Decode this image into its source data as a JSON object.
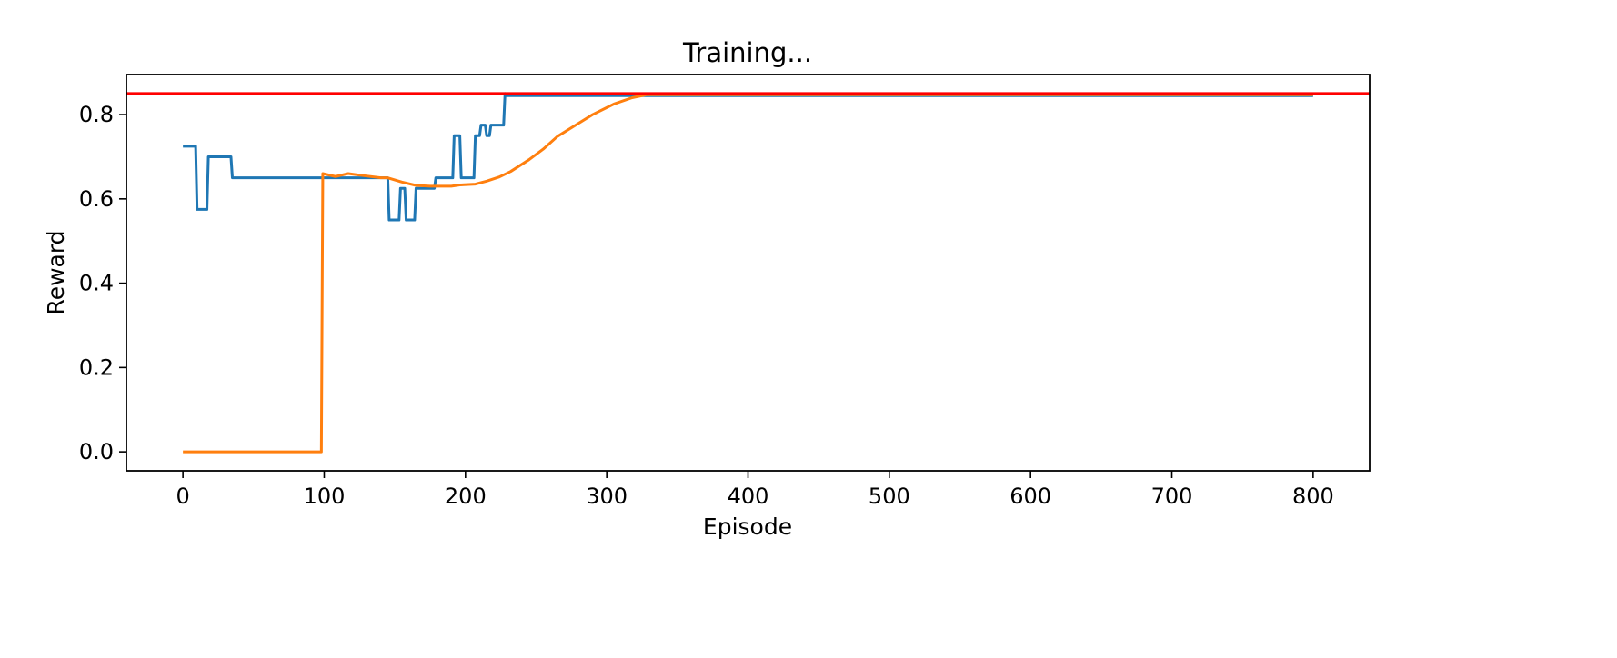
{
  "chart_data": {
    "type": "line",
    "title": "Training...",
    "xlabel": "Episode",
    "ylabel": "Reward",
    "xlim": [
      -40,
      840
    ],
    "ylim": [
      -0.045,
      0.895
    ],
    "x_ticks": [
      0,
      100,
      200,
      300,
      400,
      500,
      600,
      700,
      800
    ],
    "x_tick_labels": [
      "0",
      "100",
      "200",
      "300",
      "400",
      "500",
      "600",
      "700",
      "800"
    ],
    "y_ticks": [
      0.0,
      0.2,
      0.4,
      0.6,
      0.8
    ],
    "y_tick_labels": [
      "0.0",
      "0.2",
      "0.4",
      "0.6",
      "0.8"
    ],
    "grid": false,
    "legend": "none",
    "reference_line": {
      "y": 0.85,
      "color": "#ff0000"
    },
    "series": [
      {
        "color": "#1f77b4",
        "points": [
          [
            0,
            0.725
          ],
          [
            9,
            0.725
          ],
          [
            10,
            0.575
          ],
          [
            17,
            0.575
          ],
          [
            18,
            0.7
          ],
          [
            34,
            0.7
          ],
          [
            35,
            0.65
          ],
          [
            145,
            0.65
          ],
          [
            146,
            0.55
          ],
          [
            153,
            0.55
          ],
          [
            154,
            0.625
          ],
          [
            157,
            0.625
          ],
          [
            158,
            0.55
          ],
          [
            164,
            0.55
          ],
          [
            165,
            0.625
          ],
          [
            178,
            0.625
          ],
          [
            179,
            0.65
          ],
          [
            191,
            0.65
          ],
          [
            192,
            0.75
          ],
          [
            196,
            0.75
          ],
          [
            197,
            0.65
          ],
          [
            206,
            0.65
          ],
          [
            207,
            0.75
          ],
          [
            210,
            0.75
          ],
          [
            211,
            0.775
          ],
          [
            214,
            0.775
          ],
          [
            215,
            0.75
          ],
          [
            217,
            0.75
          ],
          [
            218,
            0.775
          ],
          [
            227,
            0.775
          ],
          [
            228,
            0.85
          ],
          [
            229,
            0.845
          ],
          [
            325,
            0.845
          ],
          [
            800,
            0.845
          ]
        ]
      },
      {
        "color": "#ff7f0e",
        "points": [
          [
            0,
            0.0
          ],
          [
            98,
            0.0
          ],
          [
            99,
            0.66
          ],
          [
            108,
            0.653
          ],
          [
            117,
            0.66
          ],
          [
            128,
            0.655
          ],
          [
            140,
            0.65
          ],
          [
            145,
            0.65
          ],
          [
            155,
            0.64
          ],
          [
            165,
            0.632
          ],
          [
            175,
            0.63
          ],
          [
            190,
            0.63
          ],
          [
            196,
            0.633
          ],
          [
            207,
            0.635
          ],
          [
            215,
            0.642
          ],
          [
            224,
            0.652
          ],
          [
            232,
            0.665
          ],
          [
            245,
            0.693
          ],
          [
            255,
            0.718
          ],
          [
            265,
            0.748
          ],
          [
            278,
            0.775
          ],
          [
            290,
            0.8
          ],
          [
            305,
            0.825
          ],
          [
            318,
            0.84
          ],
          [
            328,
            0.847
          ],
          [
            400,
            0.847
          ],
          [
            800,
            0.847
          ]
        ]
      }
    ]
  }
}
